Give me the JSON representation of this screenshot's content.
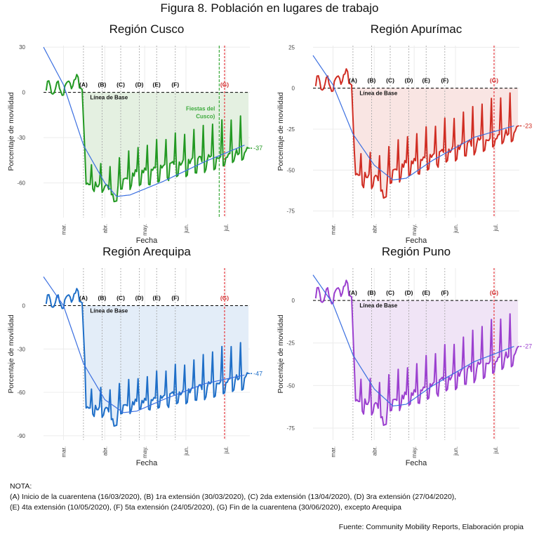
{
  "title": "Figura 8. Población en lugares de trabajo",
  "notes": [
    "NOTA:",
    "(A) Inicio de la cuarentena (16/03/2020), (B) 1ra extensión (30/03/2020), (C) 2da extensión (13/04/2020), (D) 3ra extensión (27/04/2020),",
    "(E) 4ta extensión (10/05/2020), (F) 5ta extensión (24/05/2020), (G) Fin de la cuarentena (30/06/2020), excepto Arequipa"
  ],
  "source": "Fuente: Community Mobility Reports, Elaboración propia",
  "colors": {
    "baseline": "#000000",
    "marker_lines": "#aaaaaa",
    "end_line": "#e8474c",
    "trend": "#3b6fe0"
  },
  "chart_data": [
    {
      "type": "line",
      "title": "Región Cusco",
      "xlabel": "Fecha",
      "ylabel": "Porcentaje de movilidad",
      "x_ticks": [
        "mar.",
        "abr.",
        "may.",
        "jun.",
        "jul."
      ],
      "xlim": [
        "2020-02-15",
        "2020-07-19"
      ],
      "ylim": [
        -83,
        31
      ],
      "y_ticks": [
        30,
        0,
        -30,
        -60
      ],
      "grid": true,
      "color": "#229922",
      "fill": "#e4f0e1",
      "baseline_label": "Línea de Base",
      "end_value": -37,
      "end_label": "-37",
      "markers": [
        {
          "label": "(A)",
          "date": "2020-03-16"
        },
        {
          "label": "(B)",
          "date": "2020-03-30"
        },
        {
          "label": "(C)",
          "date": "2020-04-13"
        },
        {
          "label": "(D)",
          "date": "2020-04-27"
        },
        {
          "label": "(E)",
          "date": "2020-05-10"
        },
        {
          "label": "(F)",
          "date": "2020-05-24"
        },
        {
          "label": "(G)",
          "date": "2020-06-30"
        }
      ],
      "extra_line": {
        "date": "2020-06-26",
        "color": "#3caa3c",
        "label": [
          "Fiestas del",
          "Cusco)"
        ]
      },
      "weekday_values": [
        -60,
        -63,
        -52,
        -48,
        -45,
        -42,
        -38
      ],
      "weekend_values": [
        -63,
        -65,
        -60,
        -56,
        -52,
        -48,
        -42
      ],
      "trend": [
        {
          "x": "2020-02-15",
          "y": 30
        },
        {
          "x": "2020-03-01",
          "y": 5
        },
        {
          "x": "2020-03-16",
          "y": -35
        },
        {
          "x": "2020-04-01",
          "y": -60
        },
        {
          "x": "2020-04-10",
          "y": -69
        },
        {
          "x": "2020-04-20",
          "y": -68
        },
        {
          "x": "2020-05-15",
          "y": -59
        },
        {
          "x": "2020-06-15",
          "y": -46
        },
        {
          "x": "2020-07-15",
          "y": -35
        }
      ]
    },
    {
      "type": "line",
      "title": "Región Apurímac",
      "xlabel": "Fecha",
      "ylabel": "Porcentaje de movilidad",
      "x_ticks": [
        "mar.",
        "abr.",
        "may.",
        "jun.",
        "jul."
      ],
      "xlim": [
        "2020-02-15",
        "2020-07-19"
      ],
      "ylim": [
        -79,
        26
      ],
      "y_ticks": [
        25,
        0,
        -25,
        -50,
        -75
      ],
      "grid": true,
      "color": "#d02c22",
      "fill": "#f9e5e3",
      "baseline_label": "Línea de Base",
      "end_value": -23,
      "end_label": "-23",
      "markers": [
        {
          "label": "(A)",
          "date": "2020-03-16"
        },
        {
          "label": "(B)",
          "date": "2020-03-30"
        },
        {
          "label": "(C)",
          "date": "2020-04-13"
        },
        {
          "label": "(D)",
          "date": "2020-04-27"
        },
        {
          "label": "(E)",
          "date": "2020-05-10"
        },
        {
          "label": "(F)",
          "date": "2020-05-24"
        },
        {
          "label": "(G)",
          "date": "2020-06-30"
        }
      ],
      "weekday_values": [
        -52,
        -55,
        -45,
        -40,
        -35,
        -30,
        -25
      ],
      "weekend_values": [
        -58,
        -60,
        -52,
        -46,
        -40,
        -35,
        -30
      ],
      "trend": [
        {
          "x": "2020-02-15",
          "y": 20
        },
        {
          "x": "2020-03-01",
          "y": 2
        },
        {
          "x": "2020-03-16",
          "y": -28
        },
        {
          "x": "2020-04-01",
          "y": -47
        },
        {
          "x": "2020-04-15",
          "y": -56
        },
        {
          "x": "2020-04-25",
          "y": -55
        },
        {
          "x": "2020-05-15",
          "y": -44
        },
        {
          "x": "2020-06-15",
          "y": -30
        },
        {
          "x": "2020-07-15",
          "y": -23
        }
      ]
    },
    {
      "type": "line",
      "title": "Región Arequipa",
      "xlabel": "Fecha",
      "ylabel": "Porcentaje de movilidad",
      "x_ticks": [
        "mar.",
        "abr.",
        "may.",
        "jun.",
        "jul."
      ],
      "xlim": [
        "2020-02-15",
        "2020-07-19"
      ],
      "ylim": [
        -93,
        26
      ],
      "y_ticks": [
        0,
        -30,
        -60,
        -90
      ],
      "grid": true,
      "color": "#1f6fc8",
      "fill": "#e3edf8",
      "baseline_label": "Línea de Base",
      "end_value": -47,
      "end_label": "-47",
      "markers": [
        {
          "label": "(A)",
          "date": "2020-03-16"
        },
        {
          "label": "(B)",
          "date": "2020-03-30"
        },
        {
          "label": "(C)",
          "date": "2020-04-13"
        },
        {
          "label": "(D)",
          "date": "2020-04-27"
        },
        {
          "label": "(E)",
          "date": "2020-05-10"
        },
        {
          "label": "(F)",
          "date": "2020-05-24"
        },
        {
          "label": "(G)",
          "date": "2020-06-30"
        }
      ],
      "weekday_values": [
        -70,
        -72,
        -66,
        -62,
        -58,
        -52,
        -48
      ],
      "weekend_values": [
        -74,
        -76,
        -70,
        -68,
        -64,
        -60,
        -56
      ],
      "trend": [
        {
          "x": "2020-02-15",
          "y": 20
        },
        {
          "x": "2020-03-01",
          "y": 0
        },
        {
          "x": "2020-03-16",
          "y": -40
        },
        {
          "x": "2020-04-01",
          "y": -65
        },
        {
          "x": "2020-04-15",
          "y": -74
        },
        {
          "x": "2020-04-25",
          "y": -73
        },
        {
          "x": "2020-05-15",
          "y": -65
        },
        {
          "x": "2020-06-15",
          "y": -54
        },
        {
          "x": "2020-07-15",
          "y": -48
        }
      ]
    },
    {
      "type": "line",
      "title": "Región Puno",
      "xlabel": "Fecha",
      "ylabel": "Porcentaje de movilidad",
      "x_ticks": [
        "mar.",
        "abr.",
        "may.",
        "jun.",
        "jul."
      ],
      "xlim": [
        "2020-02-15",
        "2020-07-19"
      ],
      "ylim": [
        -82,
        19
      ],
      "y_ticks": [
        0,
        -25,
        -50,
        -75
      ],
      "grid": true,
      "color": "#9b3fcf",
      "fill": "#f0e4f6",
      "baseline_label": "Línea de Base",
      "end_value": -27,
      "end_label": "-27",
      "markers": [
        {
          "label": "(A)",
          "date": "2020-03-16"
        },
        {
          "label": "(B)",
          "date": "2020-03-30"
        },
        {
          "label": "(C)",
          "date": "2020-04-13"
        },
        {
          "label": "(D)",
          "date": "2020-04-27"
        },
        {
          "label": "(E)",
          "date": "2020-05-10"
        },
        {
          "label": "(F)",
          "date": "2020-05-24"
        },
        {
          "label": "(G)",
          "date": "2020-06-30"
        }
      ],
      "weekday_values": [
        -58,
        -62,
        -55,
        -48,
        -42,
        -35,
        -30
      ],
      "weekend_values": [
        -64,
        -66,
        -60,
        -54,
        -48,
        -42,
        -36
      ],
      "trend": [
        {
          "x": "2020-02-15",
          "y": 15
        },
        {
          "x": "2020-03-01",
          "y": -2
        },
        {
          "x": "2020-03-16",
          "y": -32
        },
        {
          "x": "2020-04-01",
          "y": -52
        },
        {
          "x": "2020-04-15",
          "y": -62
        },
        {
          "x": "2020-04-25",
          "y": -61
        },
        {
          "x": "2020-05-15",
          "y": -50
        },
        {
          "x": "2020-06-15",
          "y": -36
        },
        {
          "x": "2020-07-15",
          "y": -27
        }
      ]
    }
  ]
}
